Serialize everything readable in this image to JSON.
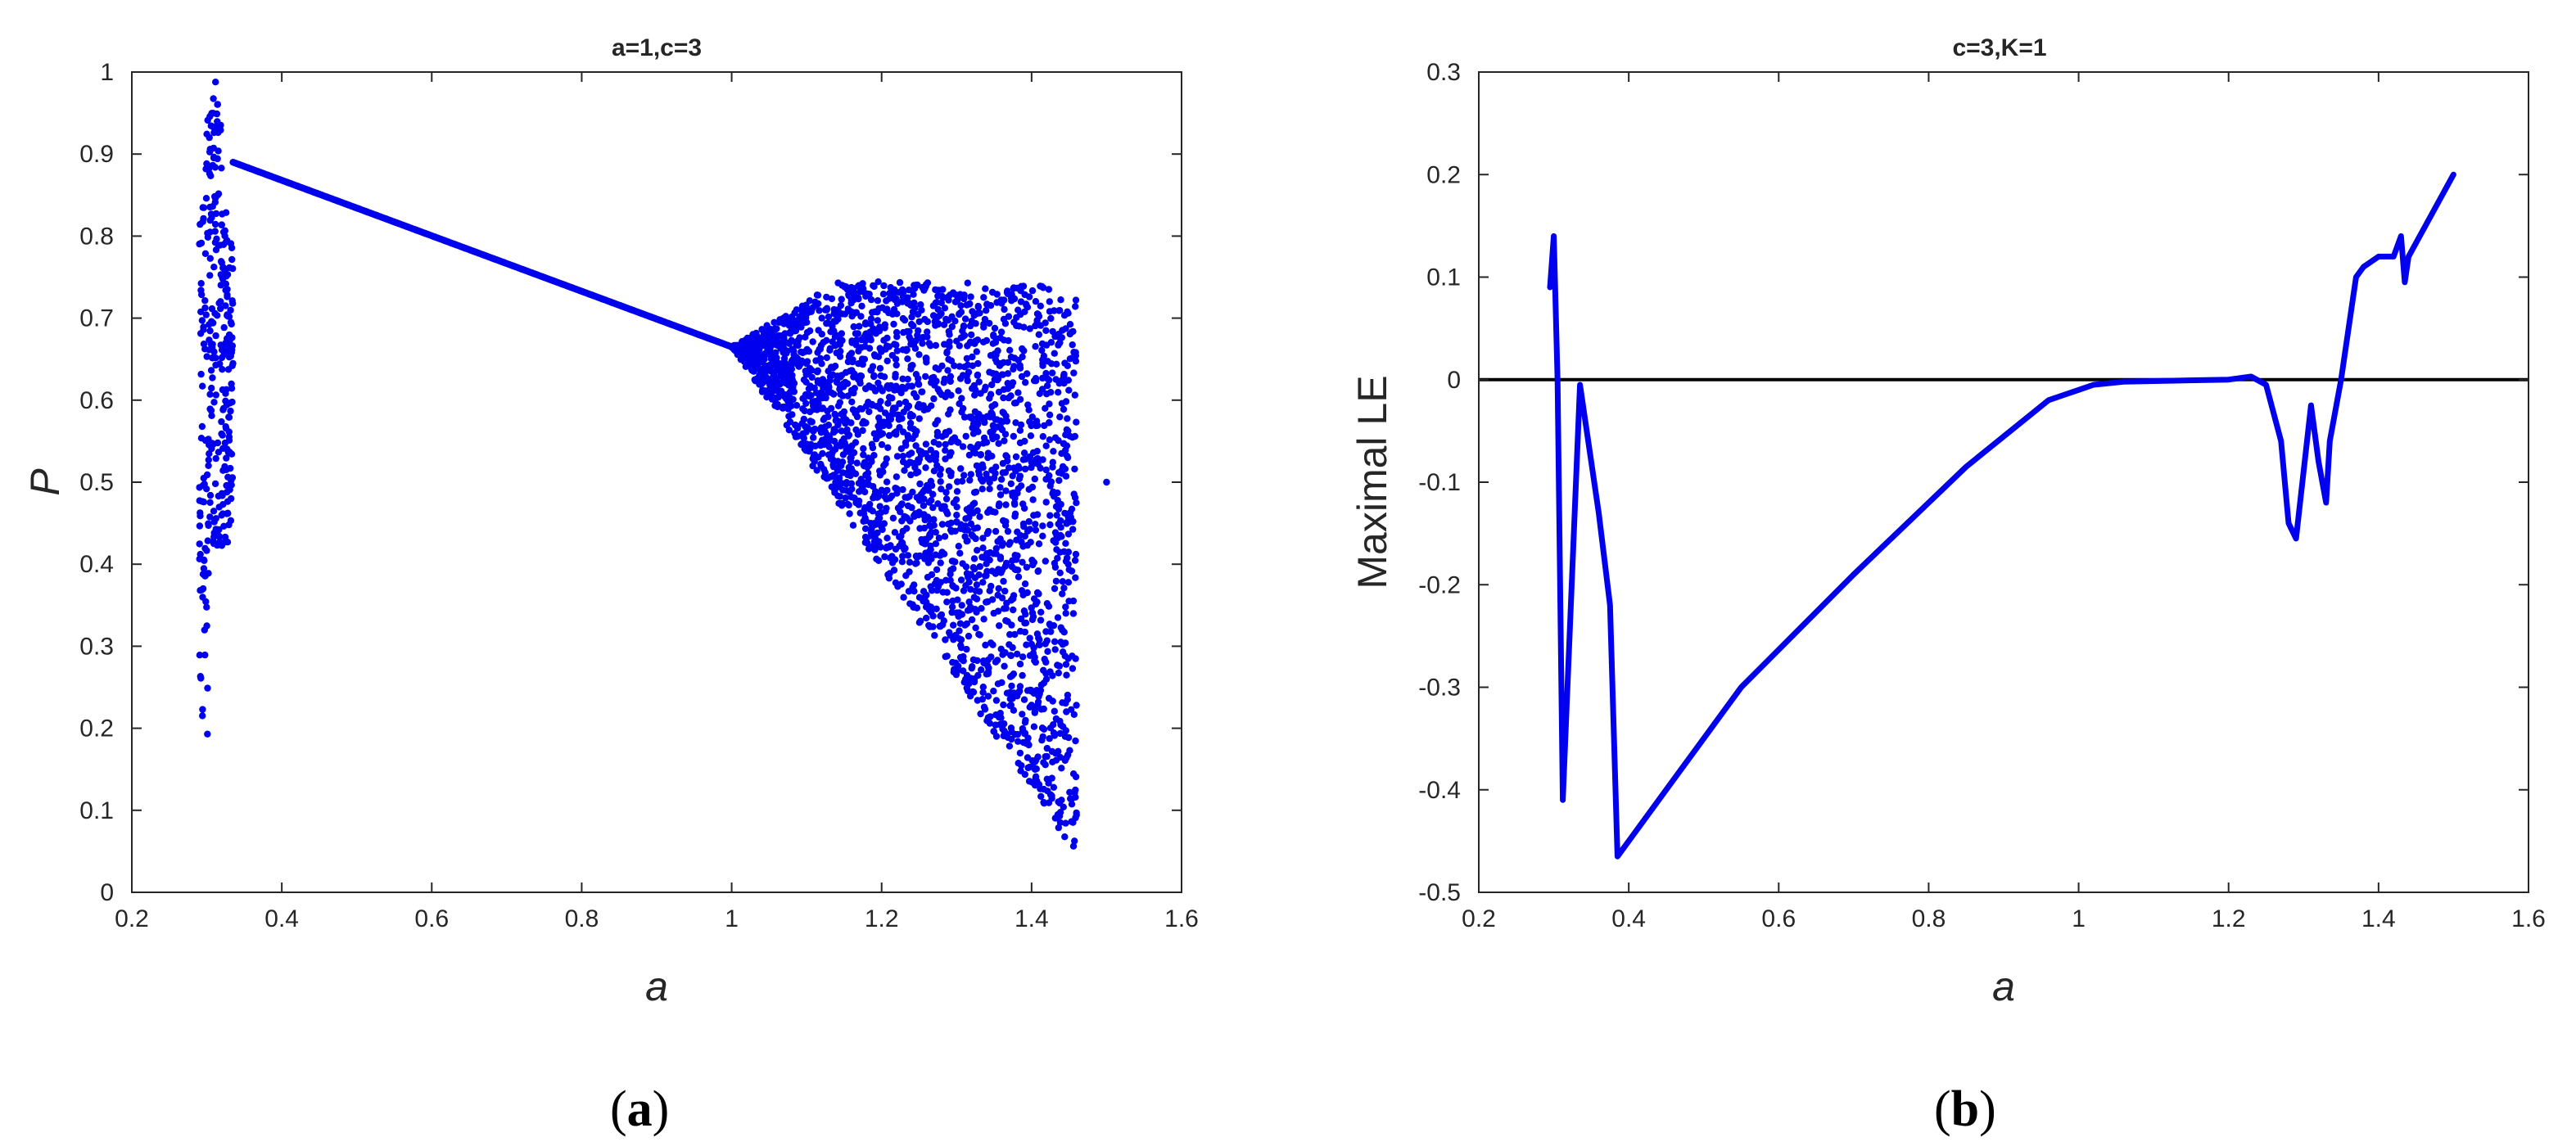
{
  "colors": {
    "series": "#0000ee",
    "axis": "#262626",
    "zero_line": "#000000"
  },
  "subfigure_labels": {
    "left": "a",
    "right": "b"
  },
  "chart_data": [
    {
      "type": "scatter",
      "title": "a=1,c=3",
      "xlabel": "a",
      "ylabel": "P",
      "xlim": [
        0.2,
        1.6
      ],
      "ylim": [
        0,
        1
      ],
      "xticks": [
        "0.2",
        "0.4",
        "0.6",
        "0.8",
        "1",
        "1.2",
        "1.4",
        "1.6"
      ],
      "yticks": [
        "0",
        "0.1",
        "0.2",
        "0.3",
        "0.4",
        "0.5",
        "0.6",
        "0.7",
        "0.8",
        "0.9",
        "1"
      ],
      "grid": false,
      "series": [
        {
          "kind": "bifurcation-diagram",
          "segments": [
            {
              "region": "chaotic",
              "a": [
                0.29,
                0.335
              ],
              "P": [
                0.12,
                1.0
              ]
            },
            {
              "region": "fixed-point",
              "a": [
                0.335,
                1.0
              ],
              "P": [
                0.89,
                0.665
              ]
            },
            {
              "region": "chaotic",
              "a": [
                1.0,
                1.46
              ],
              "P": [
                0.035,
                0.745
              ]
            },
            {
              "region": "isolated-point",
              "a": [
                1.5,
                1.5
              ],
              "P": [
                0.5,
                0.5
              ]
            }
          ]
        }
      ]
    },
    {
      "type": "line",
      "title": "c=3,K=1",
      "xlabel": "a",
      "ylabel": "Maximal LE",
      "xlim": [
        0.2,
        1.6
      ],
      "ylim": [
        -0.5,
        0.3
      ],
      "xticks": [
        "0.2",
        "0.4",
        "0.6",
        "0.8",
        "1",
        "1.2",
        "1.4",
        "1.6"
      ],
      "yticks": [
        "-0.5",
        "-0.4",
        "-0.3",
        "-0.2",
        "-0.1",
        "0",
        "0.1",
        "0.2",
        "0.3"
      ],
      "grid": false,
      "reference_line": {
        "y": 0
      },
      "series": [
        {
          "x": [
            0.295,
            0.3,
            0.305,
            0.312,
            0.335,
            0.36,
            0.375,
            0.385,
            0.45,
            0.52,
            0.55,
            0.7,
            0.85,
            0.96,
            0.98,
            1.0,
            1.02,
            1.06,
            1.2,
            1.23,
            1.25,
            1.27,
            1.28,
            1.29,
            1.31,
            1.32,
            1.33,
            1.335,
            1.35,
            1.37,
            1.38,
            1.4,
            1.42,
            1.43,
            1.435,
            1.44,
            1.5
          ],
          "y": [
            0.09,
            0.14,
            0.0,
            -0.41,
            -0.005,
            -0.13,
            -0.22,
            -0.465,
            -0.4,
            -0.33,
            -0.3,
            -0.19,
            -0.085,
            -0.02,
            -0.015,
            -0.01,
            -0.005,
            -0.002,
            0.0,
            0.003,
            -0.005,
            -0.06,
            -0.14,
            -0.155,
            -0.025,
            -0.08,
            -0.12,
            -0.06,
            0.0,
            0.1,
            0.11,
            0.12,
            0.12,
            0.14,
            0.095,
            0.12,
            0.2
          ]
        }
      ]
    }
  ]
}
